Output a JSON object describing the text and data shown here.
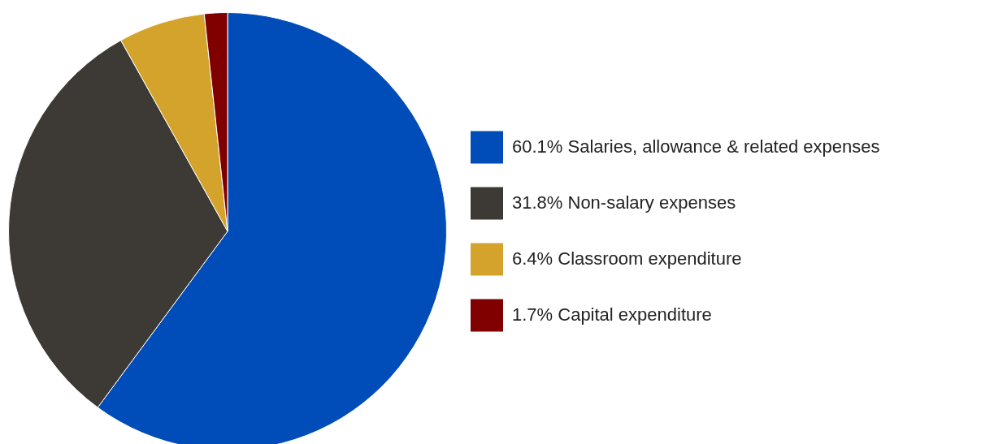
{
  "chart_data": {
    "type": "pie",
    "categories": [
      "60.1% Salaries, allowance & related expenses",
      "31.8% Non-salary expenses",
      "6.4% Classroom expenditure",
      "1.7% Capital expenditure"
    ],
    "values": [
      60.1,
      31.8,
      6.4,
      1.7
    ],
    "colors": [
      "#004cb8",
      "#3d3935",
      "#d4a32c",
      "#800000"
    ],
    "legend": "right"
  }
}
